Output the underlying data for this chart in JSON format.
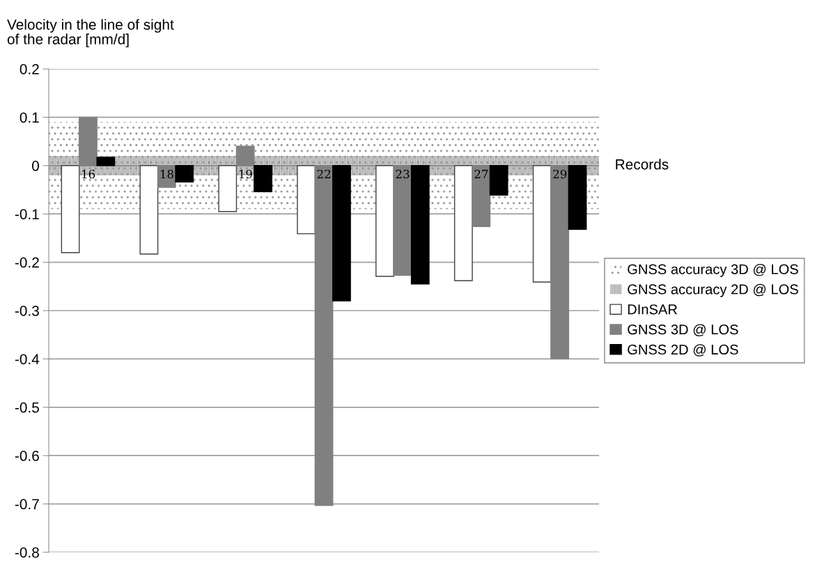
{
  "chart_data": {
    "type": "bar",
    "ylabel": "Velocity in the line of sight\nof the radar [mm/d]",
    "xlabel": "Records",
    "categories": [
      "16",
      "18",
      "19",
      "22",
      "23",
      "27",
      "29"
    ],
    "series": [
      {
        "name": "DInSAR",
        "color": "#ffffff",
        "values": [
          -0.18,
          -0.183,
          -0.095,
          -0.141,
          -0.229,
          -0.238,
          -0.241
        ]
      },
      {
        "name": "GNSS 3D @ LOS",
        "color": "#808080",
        "values": [
          0.1,
          -0.045,
          0.04,
          -0.703,
          -0.227,
          -0.126,
          -0.4
        ]
      },
      {
        "name": "GNSS 2D @ LOS",
        "color": "#000000",
        "values": [
          0.017,
          -0.034,
          -0.054,
          -0.28,
          -0.245,
          -0.061,
          -0.132
        ]
      }
    ],
    "bands": [
      {
        "axis": "y",
        "from": -0.09,
        "to": 0.09,
        "label": "GNSS accuracy 3D @ LOS",
        "color": "#909090"
      },
      {
        "axis": "y",
        "from": -0.02,
        "to": 0.02,
        "label": "GNSS accuracy 2D @ LOS",
        "color": "#909090"
      }
    ],
    "ylim": [
      -0.8,
      0.2
    ],
    "yticks": [
      -0.8,
      -0.7,
      -0.6,
      -0.5,
      -0.4,
      -0.3,
      -0.2,
      -0.1,
      0,
      0.1,
      0.2
    ],
    "grid": "y",
    "legend": "right"
  }
}
